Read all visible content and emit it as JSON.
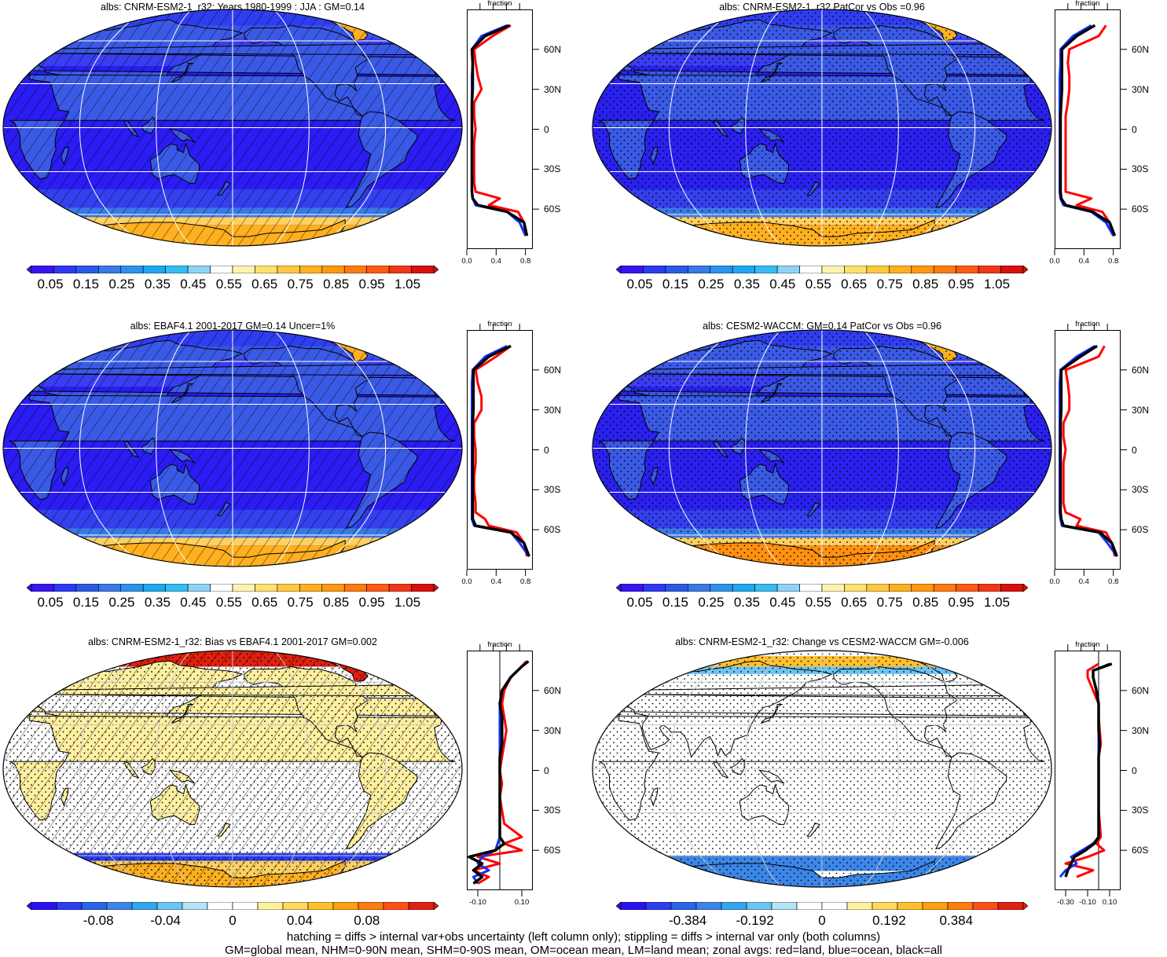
{
  "footer": {
    "line1": "hatching = diffs > internal var+obs uncertainty (left column only); stippling = diffs > internal var only (both columns)",
    "line2": "GM=global mean, NHM=0-90N mean, SHM=0-90S mean, OM=ocean mean, LM=land mean; zonal avgs: red=land, blue=ocean, black=all"
  },
  "colors": {
    "land": "#ff0000",
    "ocean": "#1030ff",
    "all": "#000000",
    "abs_scale": [
      "#3a14f0",
      "#2d3af2",
      "#2a5ae6",
      "#3a78e8",
      "#2c92ec",
      "#1fa8f0",
      "#35bdf2",
      "#8fd3f4",
      "#ffffff",
      "#fff3b0",
      "#ffe070",
      "#ffc840",
      "#ffb020",
      "#ff9810",
      "#ff7a10",
      "#ff5a18",
      "#f03818",
      "#d81010"
    ],
    "diff_scale": [
      "#2a14ee",
      "#2b3ef0",
      "#2a64e6",
      "#3c86e8",
      "#35a6ee",
      "#6cc4f0",
      "#b6e2f6",
      "#ffffff",
      "#ffffff",
      "#fff0a0",
      "#ffd860",
      "#ffc030",
      "#ffa010",
      "#ff7c10",
      "#ff4e18",
      "#e02010"
    ]
  },
  "panels": [
    {
      "title": "albs: CNRM-ESM2-1_r32: Years 1980-1999 : JJA : GM=0.14",
      "hatching": true,
      "stippling": false,
      "colorbar": {
        "labels": [
          "0.05",
          "0.15",
          "0.25",
          "0.35",
          "0.45",
          "0.55",
          "0.65",
          "0.75",
          "0.85",
          "0.95",
          "1.05"
        ]
      },
      "zonal": {
        "title": "fraction",
        "xlim": [
          0,
          0.9
        ],
        "xticks": [
          "0.0",
          "0.4",
          "0.8"
        ],
        "xtick_values": [
          0,
          0.4,
          0.8
        ],
        "ref_line": null,
        "lat_labels": [
          "60N",
          "30N",
          "0",
          "30S",
          "60S"
        ]
      }
    },
    {
      "title": "albs: CNRM-ESM2-1_r32 PatCor vs Obs =0.96",
      "hatching": false,
      "stippling": true,
      "colorbar": {
        "labels": [
          "0.05",
          "0.15",
          "0.25",
          "0.35",
          "0.45",
          "0.55",
          "0.65",
          "0.75",
          "0.85",
          "0.95",
          "1.05"
        ]
      },
      "zonal": {
        "title": "fraction",
        "xlim": [
          0,
          0.9
        ],
        "xticks": [
          "0.0",
          "0.4",
          "0.8"
        ],
        "xtick_values": [
          0,
          0.4,
          0.8
        ],
        "ref_line": null,
        "lat_labels": [
          "60N",
          "30N",
          "0",
          "30S",
          "60S"
        ]
      }
    },
    {
      "title": "albs: EBAF4.1 2001-2017 GM=0.14 Uncer=1%",
      "hatching": true,
      "stippling": false,
      "colorbar": {
        "labels": [
          "0.05",
          "0.15",
          "0.25",
          "0.35",
          "0.45",
          "0.55",
          "0.65",
          "0.75",
          "0.85",
          "0.95",
          "1.05"
        ]
      },
      "zonal": {
        "title": "fraction",
        "xlim": [
          0,
          0.9
        ],
        "xticks": [
          "0.0",
          "0.4",
          "0.8"
        ],
        "xtick_values": [
          0,
          0.4,
          0.8
        ],
        "ref_line": null,
        "lat_labels": [
          "60N",
          "30N",
          "0",
          "30S",
          "60S"
        ]
      }
    },
    {
      "title": "albs: CESM2-WACCM: GM=0.14 PatCor vs Obs =0.96",
      "hatching": false,
      "stippling": true,
      "colorbar": {
        "labels": [
          "0.05",
          "0.15",
          "0.25",
          "0.35",
          "0.45",
          "0.55",
          "0.65",
          "0.75",
          "0.85",
          "0.95",
          "1.05"
        ]
      },
      "zonal": {
        "title": "fraction",
        "xlim": [
          0,
          0.9
        ],
        "xticks": [
          "0.0",
          "0.4",
          "0.8"
        ],
        "xtick_values": [
          0,
          0.4,
          0.8
        ],
        "ref_line": null,
        "lat_labels": [
          "60N",
          "30N",
          "0",
          "30S",
          "60S"
        ]
      }
    },
    {
      "title": "albs: CNRM-ESM2-1_r32: Bias vs EBAF4.1 2001-2017 GM=0.002",
      "hatching": true,
      "stippling": true,
      "colorbar": {
        "labels": [
          "-0.08",
          "-0.04",
          "0",
          "0.04",
          "0.08"
        ]
      },
      "zonal": {
        "title": "fraction",
        "xlim": [
          -0.15,
          0.15
        ],
        "xticks": [
          "-0.10",
          "0.10"
        ],
        "xtick_values": [
          -0.1,
          0.1
        ],
        "ref_line": 0,
        "lat_labels": [
          "60N",
          "30N",
          "0",
          "30S",
          "60S"
        ]
      }
    },
    {
      "title": "albs: CNRM-ESM2-1_r32: Change vs CESM2-WACCM GM=-0.006",
      "hatching": false,
      "stippling": true,
      "colorbar": {
        "labels": [
          "-0.384",
          "-0.192",
          "0",
          "0.192",
          "0.384"
        ]
      },
      "zonal": {
        "title": "fraction",
        "xlim": [
          -0.4,
          0.2
        ],
        "xticks": [
          "-0.30",
          "-0.10",
          "0.10"
        ],
        "xtick_values": [
          -0.3,
          -0.1,
          0.1
        ],
        "ref_line": 0,
        "lat_labels": [
          "60N",
          "30N",
          "0",
          "30S",
          "60S"
        ]
      }
    }
  ],
  "chart_data": [
    {
      "type": "area",
      "title": "albs: CNRM-ESM2-1_r32: Years 1980-1999 : JJA : GM=0.14",
      "xlabel": "fraction",
      "xlim": [
        0,
        0.9
      ],
      "ylim": [
        -90,
        90
      ],
      "x": [
        -80,
        -70,
        -62,
        -57,
        -52,
        -47,
        -40,
        -30,
        -20,
        -10,
        0,
        10,
        20,
        30,
        40,
        50,
        60,
        70,
        78
      ],
      "series": [
        {
          "name": "land",
          "values": [
            0.8,
            0.78,
            0.7,
            0.3,
            0.45,
            0.12,
            0.1,
            0.1,
            0.1,
            0.1,
            0.12,
            0.1,
            0.1,
            0.2,
            0.15,
            0.12,
            0.1,
            0.35,
            0.6
          ]
        },
        {
          "name": "ocean",
          "values": [
            0.8,
            0.72,
            0.55,
            0.12,
            0.08,
            0.07,
            0.07,
            0.07,
            0.07,
            0.07,
            0.07,
            0.07,
            0.07,
            0.07,
            0.07,
            0.08,
            0.07,
            0.2,
            0.55
          ]
        },
        {
          "name": "all",
          "values": [
            0.82,
            0.78,
            0.55,
            0.15,
            0.08,
            0.07,
            0.07,
            0.07,
            0.07,
            0.07,
            0.07,
            0.07,
            0.07,
            0.08,
            0.08,
            0.08,
            0.07,
            0.25,
            0.58
          ]
        }
      ]
    },
    {
      "type": "area",
      "title": "albs: CNRM-ESM2-1_r32 PatCor vs Obs =0.96",
      "xlabel": "fraction",
      "xlim": [
        0,
        0.9
      ],
      "ylim": [
        -90,
        90
      ],
      "x": [
        -80,
        -70,
        -62,
        -57,
        -52,
        -47,
        -40,
        -30,
        -20,
        -10,
        0,
        10,
        20,
        30,
        40,
        50,
        60,
        70,
        78
      ],
      "series": [
        {
          "name": "land",
          "values": [
            0.8,
            0.75,
            0.65,
            0.3,
            0.5,
            0.15,
            0.15,
            0.15,
            0.15,
            0.15,
            0.15,
            0.15,
            0.18,
            0.2,
            0.2,
            0.18,
            0.2,
            0.6,
            0.7
          ]
        },
        {
          "name": "ocean",
          "values": [
            0.8,
            0.7,
            0.5,
            0.12,
            0.08,
            0.07,
            0.07,
            0.07,
            0.07,
            0.07,
            0.07,
            0.07,
            0.07,
            0.07,
            0.07,
            0.08,
            0.08,
            0.25,
            0.5
          ]
        },
        {
          "name": "all",
          "values": [
            0.82,
            0.75,
            0.52,
            0.15,
            0.09,
            0.08,
            0.08,
            0.08,
            0.08,
            0.08,
            0.08,
            0.08,
            0.09,
            0.1,
            0.1,
            0.1,
            0.1,
            0.3,
            0.55
          ]
        }
      ]
    },
    {
      "type": "area",
      "title": "albs: EBAF4.1 2001-2017 GM=0.14 Uncer=1%",
      "xlabel": "fraction",
      "xlim": [
        0,
        0.9
      ],
      "ylim": [
        -90,
        90
      ],
      "x": [
        -80,
        -70,
        -62,
        -57,
        -52,
        -47,
        -40,
        -30,
        -20,
        -10,
        0,
        10,
        20,
        30,
        40,
        50,
        60,
        70,
        78
      ],
      "series": [
        {
          "name": "land",
          "values": [
            0.82,
            0.78,
            0.68,
            0.3,
            0.25,
            0.12,
            0.12,
            0.1,
            0.1,
            0.12,
            0.12,
            0.1,
            0.1,
            0.2,
            0.2,
            0.15,
            0.12,
            0.4,
            0.6
          ]
        },
        {
          "name": "ocean",
          "values": [
            0.85,
            0.72,
            0.6,
            0.1,
            0.07,
            0.07,
            0.07,
            0.07,
            0.07,
            0.07,
            0.07,
            0.07,
            0.07,
            0.07,
            0.07,
            0.07,
            0.08,
            0.25,
            0.55
          ]
        },
        {
          "name": "all",
          "values": [
            0.85,
            0.78,
            0.6,
            0.12,
            0.08,
            0.08,
            0.08,
            0.08,
            0.08,
            0.08,
            0.08,
            0.08,
            0.08,
            0.09,
            0.09,
            0.09,
            0.09,
            0.3,
            0.6
          ]
        }
      ]
    },
    {
      "type": "area",
      "title": "albs: CESM2-WACCM: GM=0.14 PatCor vs Obs =0.96",
      "xlabel": "fraction",
      "xlim": [
        0,
        0.9
      ],
      "ylim": [
        -90,
        90
      ],
      "x": [
        -80,
        -70,
        -62,
        -57,
        -52,
        -47,
        -40,
        -30,
        -20,
        -10,
        0,
        10,
        20,
        30,
        40,
        50,
        60,
        70,
        78
      ],
      "series": [
        {
          "name": "land",
          "values": [
            0.82,
            0.78,
            0.7,
            0.3,
            0.35,
            0.15,
            0.12,
            0.12,
            0.12,
            0.12,
            0.15,
            0.12,
            0.12,
            0.2,
            0.2,
            0.18,
            0.15,
            0.6,
            0.68
          ]
        },
        {
          "name": "ocean",
          "values": [
            0.85,
            0.72,
            0.6,
            0.1,
            0.08,
            0.07,
            0.07,
            0.07,
            0.07,
            0.07,
            0.07,
            0.07,
            0.07,
            0.07,
            0.07,
            0.07,
            0.08,
            0.3,
            0.55
          ]
        },
        {
          "name": "all",
          "values": [
            0.85,
            0.78,
            0.62,
            0.12,
            0.09,
            0.08,
            0.08,
            0.08,
            0.08,
            0.08,
            0.08,
            0.08,
            0.08,
            0.09,
            0.09,
            0.09,
            0.09,
            0.35,
            0.58
          ]
        }
      ]
    },
    {
      "type": "area",
      "title": "albs: CNRM-ESM2-1_r32: Bias vs EBAF4.1 2001-2017 GM=0.002",
      "xlabel": "fraction",
      "xlim": [
        -0.15,
        0.15
      ],
      "ylim": [
        -90,
        90
      ],
      "x": [
        -85,
        -80,
        -75,
        -70,
        -65,
        -60,
        -55,
        -50,
        -40,
        -30,
        -20,
        -10,
        0,
        10,
        20,
        30,
        40,
        50,
        60,
        70,
        78,
        82
      ],
      "series": [
        {
          "name": "land",
          "values": [
            -0.1,
            -0.05,
            -0.12,
            0.0,
            -0.1,
            0.1,
            0.02,
            0.1,
            0.02,
            0.01,
            0.0,
            0.01,
            0.0,
            0.01,
            0.02,
            0.03,
            0.02,
            0.01,
            0.02,
            0.05,
            0.1,
            0.12
          ]
        },
        {
          "name": "ocean",
          "values": [
            -0.1,
            -0.12,
            -0.05,
            -0.1,
            -0.08,
            -0.02,
            -0.01,
            0.0,
            0.0,
            0.0,
            0.0,
            0.0,
            0.0,
            0.0,
            0.0,
            0.0,
            0.0,
            0.0,
            0.01,
            0.05,
            0.1,
            0.13
          ]
        },
        {
          "name": "all",
          "values": [
            -0.12,
            -0.08,
            -0.12,
            -0.08,
            -0.14,
            -0.02,
            0.02,
            0.0,
            0.0,
            0.0,
            0.0,
            0.0,
            0.0,
            0.0,
            0.01,
            0.01,
            0.01,
            0.0,
            0.01,
            0.05,
            0.1,
            0.13
          ]
        }
      ]
    },
    {
      "type": "area",
      "title": "albs: CNRM-ESM2-1_r32: Change vs CESM2-WACCM GM=-0.006",
      "xlabel": "fraction",
      "xlim": [
        -0.4,
        0.2
      ],
      "ylim": [
        -90,
        90
      ],
      "x": [
        -80,
        -75,
        -70,
        -65,
        -60,
        -55,
        -50,
        -40,
        -30,
        -20,
        -10,
        0,
        10,
        20,
        30,
        40,
        50,
        60,
        70,
        75,
        80
      ],
      "series": [
        {
          "name": "land",
          "values": [
            -0.2,
            -0.05,
            -0.3,
            -0.1,
            0.05,
            -0.02,
            0.02,
            0.01,
            0.0,
            0.0,
            0.0,
            0.0,
            0.0,
            0.02,
            0.01,
            0.0,
            0.0,
            -0.05,
            -0.1,
            -0.1,
            0.0
          ]
        },
        {
          "name": "ocean",
          "values": [
            -0.35,
            -0.3,
            -0.2,
            -0.25,
            -0.15,
            -0.05,
            0.0,
            0.0,
            0.0,
            0.0,
            0.0,
            0.0,
            0.0,
            0.0,
            0.0,
            0.0,
            0.0,
            -0.02,
            -0.05,
            -0.05,
            0.1
          ]
        },
        {
          "name": "all",
          "values": [
            -0.3,
            -0.28,
            -0.25,
            -0.22,
            -0.12,
            -0.04,
            0.0,
            0.0,
            0.0,
            0.0,
            0.0,
            0.0,
            0.0,
            0.01,
            0.0,
            0.0,
            0.0,
            -0.02,
            -0.05,
            -0.05,
            0.12
          ]
        }
      ]
    }
  ]
}
